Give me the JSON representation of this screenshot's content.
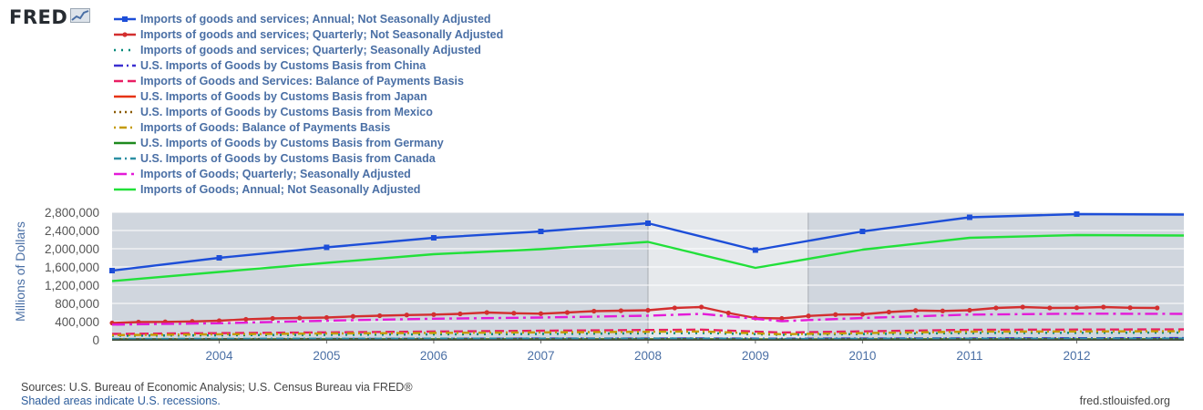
{
  "logo": {
    "text": "FRED",
    "icon": "fred-trend-chart-icon"
  },
  "chart_data": {
    "type": "line",
    "ylabel": "Millions of Dollars",
    "ylim": [
      0,
      2800000
    ],
    "yticks": [
      {
        "v": 0,
        "label": "0"
      },
      {
        "v": 400000,
        "label": "400,000"
      },
      {
        "v": 800000,
        "label": "800,000"
      },
      {
        "v": 1200000,
        "label": "1,200,000"
      },
      {
        "v": 1600000,
        "label": "1,600,000"
      },
      {
        "v": 2000000,
        "label": "2,000,000"
      },
      {
        "v": 2400000,
        "label": "2,400,000"
      },
      {
        "v": 2800000,
        "label": "2,800,000"
      }
    ],
    "xlim": [
      "2003-01-01",
      "2012-12-31"
    ],
    "xticks": [
      "2004",
      "2005",
      "2006",
      "2007",
      "2008",
      "2009",
      "2010",
      "2011",
      "2012"
    ],
    "recessions": [
      {
        "start": "2008-01-01",
        "end": "2009-06-30"
      }
    ],
    "grid": true,
    "legend_position": "top",
    "series": [
      {
        "name": "Imports of goods and services; Annual; Not Seasonally Adjusted",
        "color": "#1d4ed8",
        "dash": "",
        "marker": "square",
        "x": [
          "2003-01-01",
          "2004-01-01",
          "2005-01-01",
          "2006-01-01",
          "2007-01-01",
          "2008-01-01",
          "2009-01-01",
          "2010-01-01",
          "2011-01-01",
          "2012-01-01",
          "2013-01-01"
        ],
        "y": [
          1520000,
          1800000,
          2030000,
          2240000,
          2380000,
          2560000,
          1970000,
          2380000,
          2690000,
          2760000,
          2750000
        ]
      },
      {
        "name": "Imports of goods and services; Quarterly; Not Seasonally Adjusted",
        "color": "#d32f2f",
        "dash": "",
        "marker": "dot",
        "x": [
          "2003-01-01",
          "2003-04-01",
          "2003-07-01",
          "2003-10-01",
          "2004-01-01",
          "2004-04-01",
          "2004-07-01",
          "2004-10-01",
          "2005-01-01",
          "2005-04-01",
          "2005-07-01",
          "2005-10-01",
          "2006-01-01",
          "2006-04-01",
          "2006-07-01",
          "2006-10-01",
          "2007-01-01",
          "2007-04-01",
          "2007-07-01",
          "2007-10-01",
          "2008-01-01",
          "2008-04-01",
          "2008-07-01",
          "2008-10-01",
          "2009-01-01",
          "2009-04-01",
          "2009-07-01",
          "2009-10-01",
          "2010-01-01",
          "2010-04-01",
          "2010-07-01",
          "2010-10-01",
          "2011-01-01",
          "2011-04-01",
          "2011-07-01",
          "2011-10-01",
          "2012-01-01",
          "2012-04-01",
          "2012-07-01",
          "2012-10-01"
        ],
        "y": [
          370000,
          390000,
          395000,
          405000,
          420000,
          450000,
          470000,
          480000,
          490000,
          515000,
          530000,
          545000,
          555000,
          570000,
          600000,
          585000,
          575000,
          600000,
          630000,
          640000,
          650000,
          700000,
          720000,
          590000,
          480000,
          470000,
          525000,
          555000,
          560000,
          610000,
          645000,
          635000,
          650000,
          700000,
          720000,
          700000,
          705000,
          720000,
          705000,
          700000
        ]
      },
      {
        "name": "Imports of goods and services; Quarterly; Seasonally Adjusted",
        "color": "#00897b",
        "dash": "2,6",
        "marker": "",
        "x": [
          "2003-01-01",
          "2005-01-01",
          "2007-01-01",
          "2008-07-01",
          "2009-04-01",
          "2011-01-01",
          "2013-01-01"
        ],
        "y": [
          90000,
          110000,
          130000,
          150000,
          110000,
          150000,
          160000
        ]
      },
      {
        "name": "U.S. Imports of Goods by Customs Basis from China",
        "color": "#3b2fd0",
        "dash": "10,4,2,4",
        "marker": "",
        "x": [
          "2003-01-01",
          "2005-01-01",
          "2007-01-01",
          "2008-07-01",
          "2009-04-01",
          "2011-01-01",
          "2013-01-01"
        ],
        "y": [
          12000,
          20000,
          27000,
          30000,
          26000,
          33000,
          37000
        ]
      },
      {
        "name": "Imports of Goods and Services: Balance of Payments Basis",
        "color": "#e91e63",
        "dash": "10,5",
        "marker": "",
        "x": [
          "2003-01-01",
          "2005-01-01",
          "2007-01-01",
          "2008-07-01",
          "2009-04-01",
          "2011-01-01",
          "2013-01-01"
        ],
        "y": [
          130000,
          165000,
          200000,
          225000,
          160000,
          220000,
          230000
        ]
      },
      {
        "name": "U.S. Imports of Goods by Customs Basis from Japan",
        "color": "#e63312",
        "dash": "",
        "marker": "",
        "x": [
          "2003-01-01",
          "2005-01-01",
          "2007-01-01",
          "2008-07-01",
          "2009-04-01",
          "2011-01-01",
          "2013-01-01"
        ],
        "y": [
          10000,
          11000,
          12000,
          12000,
          8000,
          11000,
          12000
        ]
      },
      {
        "name": "U.S. Imports of Goods by Customs Basis from Mexico",
        "color": "#8a5a00",
        "dash": "2,4",
        "marker": "",
        "x": [
          "2003-01-01",
          "2005-01-01",
          "2007-01-01",
          "2008-07-01",
          "2009-04-01",
          "2011-01-01",
          "2013-01-01"
        ],
        "y": [
          11000,
          14000,
          18000,
          19000,
          15000,
          22000,
          24000
        ]
      },
      {
        "name": "Imports of Goods: Balance of Payments Basis",
        "color": "#c49a00",
        "dash": "2,4,8,4",
        "marker": "",
        "x": [
          "2003-01-01",
          "2005-01-01",
          "2007-01-01",
          "2008-07-01",
          "2009-04-01",
          "2011-01-01",
          "2013-01-01"
        ],
        "y": [
          105000,
          140000,
          165000,
          185000,
          125000,
          180000,
          190000
        ]
      },
      {
        "name": "U.S. Imports of Goods by Customs Basis from Germany",
        "color": "#1e8a1e",
        "dash": "",
        "marker": "",
        "x": [
          "2003-01-01",
          "2005-01-01",
          "2007-01-01",
          "2008-07-01",
          "2009-04-01",
          "2011-01-01",
          "2013-01-01"
        ],
        "y": [
          5500,
          7000,
          8000,
          8500,
          6000,
          8000,
          9000
        ]
      },
      {
        "name": "U.S. Imports of Goods by Customs Basis from Canada",
        "color": "#2c8fa3",
        "dash": "8,4,2,4",
        "marker": "",
        "x": [
          "2003-01-01",
          "2005-01-01",
          "2007-01-01",
          "2008-07-01",
          "2009-04-01",
          "2011-01-01",
          "2013-01-01"
        ],
        "y": [
          18000,
          24000,
          26000,
          29000,
          18000,
          26000,
          28000
        ]
      },
      {
        "name": "Imports of Goods; Quarterly; Seasonally Adjusted",
        "color": "#e31bd8",
        "dash": "14,5,3,5",
        "marker": "",
        "x": [
          "2003-01-01",
          "2004-01-01",
          "2005-01-01",
          "2006-01-01",
          "2007-01-01",
          "2008-01-01",
          "2008-07-01",
          "2009-04-01",
          "2010-01-01",
          "2011-01-01",
          "2012-01-01",
          "2013-01-01"
        ],
        "y": [
          335000,
          365000,
          420000,
          465000,
          490000,
          530000,
          570000,
          410000,
          480000,
          555000,
          575000,
          570000
        ]
      },
      {
        "name": "Imports of Goods; Annual; Not Seasonally Adjusted",
        "color": "#22e03a",
        "dash": "",
        "marker": "",
        "x": [
          "2003-01-01",
          "2004-01-01",
          "2005-01-01",
          "2006-01-01",
          "2007-01-01",
          "2008-01-01",
          "2009-01-01",
          "2010-01-01",
          "2011-01-01",
          "2012-01-01",
          "2013-01-01"
        ],
        "y": [
          1290000,
          1490000,
          1690000,
          1880000,
          1990000,
          2150000,
          1580000,
          1980000,
          2240000,
          2300000,
          2290000
        ]
      }
    ]
  },
  "footer": {
    "sources": "Sources: U.S. Bureau of Economic Analysis; U.S. Census Bureau via FRED®",
    "shaded": "Shaded areas indicate U.S. recessions.",
    "url": "fred.stlouisfed.org"
  }
}
